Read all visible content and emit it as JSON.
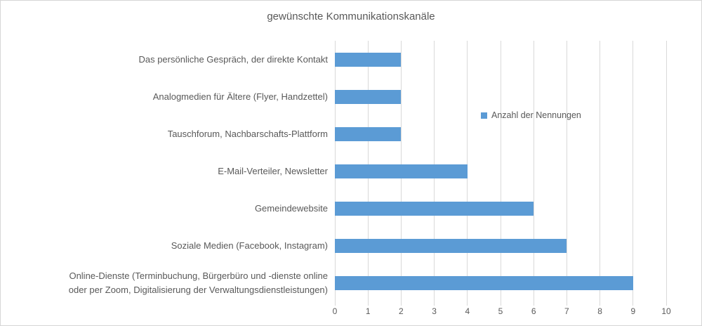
{
  "chart_data": {
    "type": "bar",
    "orientation": "horizontal",
    "title": "gewünschte Kommunikationskanäle",
    "categories": [
      "Das persönliche Gespräch, der direkte Kontakt",
      "Analogmedien für Ältere (Flyer, Handzettel)",
      "Tauschforum, Nachbarschafts-Plattform",
      "E-Mail-Verteiler, Newsletter",
      "Gemeindewebsite",
      "Soziale Medien (Facebook, Instagram)",
      "Online-Dienste (Terminbuchung, Bürgerbüro und -dienste online oder per Zoom, Digitalisierung der Verwaltungsdienstleistungen)"
    ],
    "category_label_lines": [
      [
        "Das persönliche Gespräch, der direkte Kontakt"
      ],
      [
        "Analogmedien für Ältere (Flyer, Handzettel)"
      ],
      [
        "Tauschforum, Nachbarschafts-Plattform"
      ],
      [
        "E-Mail-Verteiler, Newsletter"
      ],
      [
        "Gemeindewebsite"
      ],
      [
        "Soziale Medien (Facebook, Instagram)"
      ],
      [
        "Online-Dienste (Terminbuchung, Bürgerbüro und -dienste online",
        "oder per Zoom, Digitalisierung der Verwaltungsdienstleistungen)"
      ]
    ],
    "series": [
      {
        "name": "Anzahl der Nennungen",
        "values": [
          2,
          2,
          2,
          4,
          6,
          7,
          9
        ]
      }
    ],
    "xlim": [
      0,
      10
    ],
    "x_ticks": [
      0,
      1,
      2,
      3,
      4,
      5,
      6,
      7,
      8,
      9,
      10
    ],
    "grid": true,
    "legend_position": "right-middle",
    "colors": {
      "bar": "#5B9BD5",
      "text": "#595959",
      "gridline": "#D9D9D9",
      "border": "#D6D6D6",
      "background": "#FFFFFF"
    }
  }
}
